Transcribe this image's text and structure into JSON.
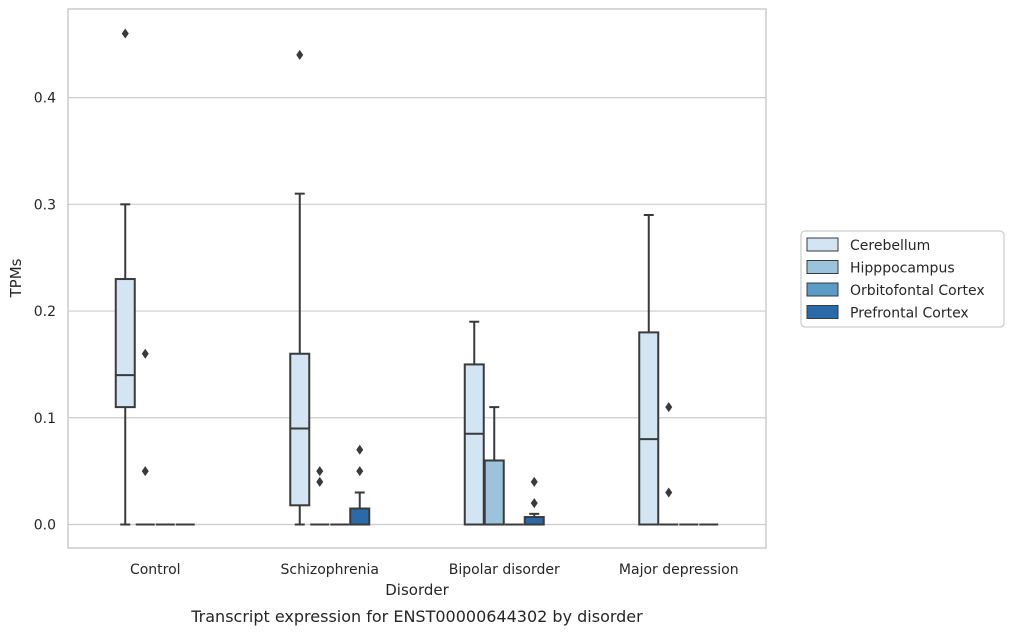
{
  "chart_data": {
    "type": "box",
    "title": "",
    "caption": "Transcript expression for ENST00000644302 by disorder",
    "xlabel": "Disorder",
    "ylabel": "TPMs",
    "ylim": [
      -0.022,
      0.483
    ],
    "yticks": [
      0.0,
      0.1,
      0.2,
      0.3,
      0.4
    ],
    "ytick_labels": [
      "0.0",
      "0.1",
      "0.2",
      "0.3",
      "0.4"
    ],
    "grid": "horizontal",
    "legend_position": "right",
    "categories": [
      "Control",
      "Schizophrenia",
      "Bipolar disorder",
      "Major depression"
    ],
    "series": [
      {
        "name": "Cerebellum",
        "color": "#d3e4f3",
        "boxes": [
          {
            "q1": 0.11,
            "median": 0.14,
            "q3": 0.23,
            "whisker_low": 0.0,
            "whisker_high": 0.3,
            "outliers": [
              0.46,
              0.16,
              0.05
            ],
            "outlier_side": [
              0,
              1,
              1
            ]
          },
          {
            "q1": 0.018,
            "median": 0.09,
            "q3": 0.16,
            "whisker_low": 0.0,
            "whisker_high": 0.31,
            "outliers": [
              0.44,
              0.05,
              0.04
            ],
            "outlier_side": [
              0,
              1,
              1
            ]
          },
          {
            "q1": 0.0,
            "median": 0.085,
            "q3": 0.15,
            "whisker_low": 0.0,
            "whisker_high": 0.19,
            "outliers": [],
            "outlier_side": []
          },
          {
            "q1": 0.0,
            "median": 0.08,
            "q3": 0.18,
            "whisker_low": 0.0,
            "whisker_high": 0.29,
            "outliers": [
              0.11,
              0.03
            ],
            "outlier_side": [
              1,
              1
            ]
          }
        ]
      },
      {
        "name": "Hipppocampus",
        "color": "#9cc3dc",
        "boxes": [
          {
            "q1": 0.0,
            "median": 0.0,
            "q3": 0.0,
            "whisker_low": 0.0,
            "whisker_high": 0.0,
            "outliers": [],
            "outlier_side": []
          },
          {
            "q1": 0.0,
            "median": 0.0,
            "q3": 0.0,
            "whisker_low": 0.0,
            "whisker_high": 0.0,
            "outliers": [],
            "outlier_side": []
          },
          {
            "q1": 0.0,
            "median": 0.0,
            "q3": 0.06,
            "whisker_low": 0.0,
            "whisker_high": 0.11,
            "outliers": [],
            "outlier_side": []
          },
          {
            "q1": 0.0,
            "median": 0.0,
            "q3": 0.0,
            "whisker_low": 0.0,
            "whisker_high": 0.0,
            "outliers": [],
            "outlier_side": []
          }
        ]
      },
      {
        "name": "Orbitofontal Cortex",
        "color": "#5b9bc8",
        "boxes": [
          {
            "q1": 0.0,
            "median": 0.0,
            "q3": 0.0,
            "whisker_low": 0.0,
            "whisker_high": 0.0,
            "outliers": [],
            "outlier_side": []
          },
          {
            "q1": 0.0,
            "median": 0.0,
            "q3": 0.0,
            "whisker_low": 0.0,
            "whisker_high": 0.0,
            "outliers": [],
            "outlier_side": []
          },
          {
            "q1": 0.0,
            "median": 0.0,
            "q3": 0.0,
            "whisker_low": 0.0,
            "whisker_high": 0.0,
            "outliers": [],
            "outlier_side": []
          },
          {
            "q1": 0.0,
            "median": 0.0,
            "q3": 0.0,
            "whisker_low": 0.0,
            "whisker_high": 0.0,
            "outliers": [],
            "outlier_side": []
          }
        ]
      },
      {
        "name": "Prefrontal Cortex",
        "color": "#2a6aa8",
        "boxes": [
          {
            "q1": 0.0,
            "median": 0.0,
            "q3": 0.0,
            "whisker_low": 0.0,
            "whisker_high": 0.0,
            "outliers": [],
            "outlier_side": []
          },
          {
            "q1": 0.0,
            "median": 0.0,
            "q3": 0.015,
            "whisker_low": 0.0,
            "whisker_high": 0.03,
            "outliers": [
              0.07,
              0.05
            ],
            "outlier_side": [
              0,
              0
            ]
          },
          {
            "q1": 0.0,
            "median": 0.0,
            "q3": 0.007,
            "whisker_low": 0.0,
            "whisker_high": 0.01,
            "outliers": [
              0.04,
              0.02
            ],
            "outlier_side": [
              0,
              0
            ]
          },
          {
            "q1": 0.0,
            "median": 0.0,
            "q3": 0.0,
            "whisker_low": 0.0,
            "whisker_high": 0.0,
            "outliers": [],
            "outlier_side": []
          }
        ]
      }
    ],
    "colors": {
      "line": "#3a3a3a",
      "grid": "#cccccc",
      "frame": "#cccccc"
    }
  }
}
